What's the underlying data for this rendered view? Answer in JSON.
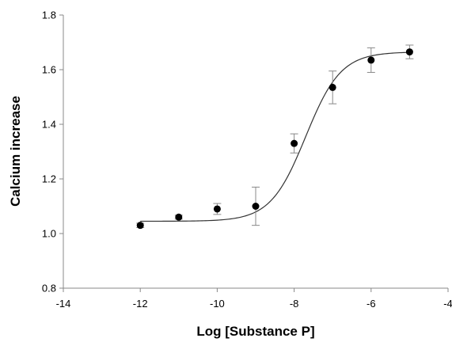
{
  "chart_data": {
    "type": "scatter",
    "title": "",
    "xlabel": "Log [Substance P]",
    "ylabel": "Calcium increase",
    "xlim": [
      -14,
      -4
    ],
    "ylim": [
      0.8,
      1.8
    ],
    "x_ticks": [
      -14,
      -12,
      -10,
      -8,
      -6,
      -4
    ],
    "x_tick_labels": [
      "-14",
      "-12",
      "-10",
      "-8",
      "-6",
      "-4"
    ],
    "y_ticks": [
      0.8,
      1.0,
      1.2,
      1.4,
      1.6,
      1.8
    ],
    "y_tick_labels": [
      "0.8",
      "1.0",
      "1.2",
      "1.4",
      "1.6",
      "1.8"
    ],
    "grid": false,
    "legend": "none",
    "series": [
      {
        "x": [
          -12,
          -11,
          -10,
          -9,
          -8,
          -7,
          -6,
          -5
        ],
        "y": [
          1.03,
          1.06,
          1.09,
          1.1,
          1.33,
          1.535,
          1.635,
          1.665
        ],
        "error": [
          0.008,
          0.007,
          0.02,
          0.07,
          0.035,
          0.06,
          0.045,
          0.025
        ],
        "marker_color": "#000000"
      }
    ],
    "fit_curve": {
      "model": "sigmoidal dose-response",
      "bottom": 1.045,
      "top": 1.665,
      "logEC50": -7.7,
      "hill_slope": 0.95,
      "x_range": [
        -12,
        -5
      ],
      "line_color": "#333333"
    }
  }
}
